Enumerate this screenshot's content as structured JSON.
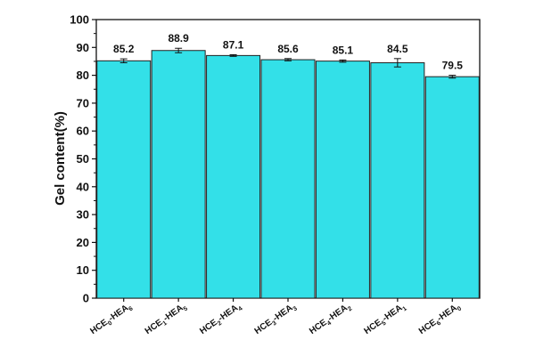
{
  "chart_data": {
    "type": "bar",
    "title": "",
    "xlabel": "",
    "ylabel": "Gel content(%)",
    "ylim": [
      0,
      100
    ],
    "yticks": [
      0,
      10,
      20,
      30,
      40,
      50,
      60,
      70,
      80,
      90,
      100
    ],
    "grid": false,
    "bar_color": "#33e0e8",
    "categories": [
      {
        "base": "HCE",
        "sub1": "0",
        "mid": "-HEA",
        "sub2": "6"
      },
      {
        "base": "HCE",
        "sub1": "1",
        "mid": "-HEA",
        "sub2": "5"
      },
      {
        "base": "HCE",
        "sub1": "2",
        "mid": "-HEA",
        "sub2": "4"
      },
      {
        "base": "HCE",
        "sub1": "3",
        "mid": "-HEA",
        "sub2": "3"
      },
      {
        "base": "HCE",
        "sub1": "4",
        "mid": "-HEA",
        "sub2": "2"
      },
      {
        "base": "HCE",
        "sub1": "5",
        "mid": "-HEA",
        "sub2": "1"
      },
      {
        "base": "HCE",
        "sub1": "6",
        "mid": "-HEA",
        "sub2": "0"
      }
    ],
    "values": [
      85.2,
      88.9,
      87.1,
      85.6,
      85.1,
      84.5,
      79.5
    ],
    "value_labels": [
      "85.2",
      "88.9",
      "87.1",
      "85.6",
      "85.1",
      "84.5",
      "79.5"
    ],
    "errors": [
      0.7,
      0.8,
      0.3,
      0.4,
      0.4,
      1.5,
      0.5
    ]
  }
}
